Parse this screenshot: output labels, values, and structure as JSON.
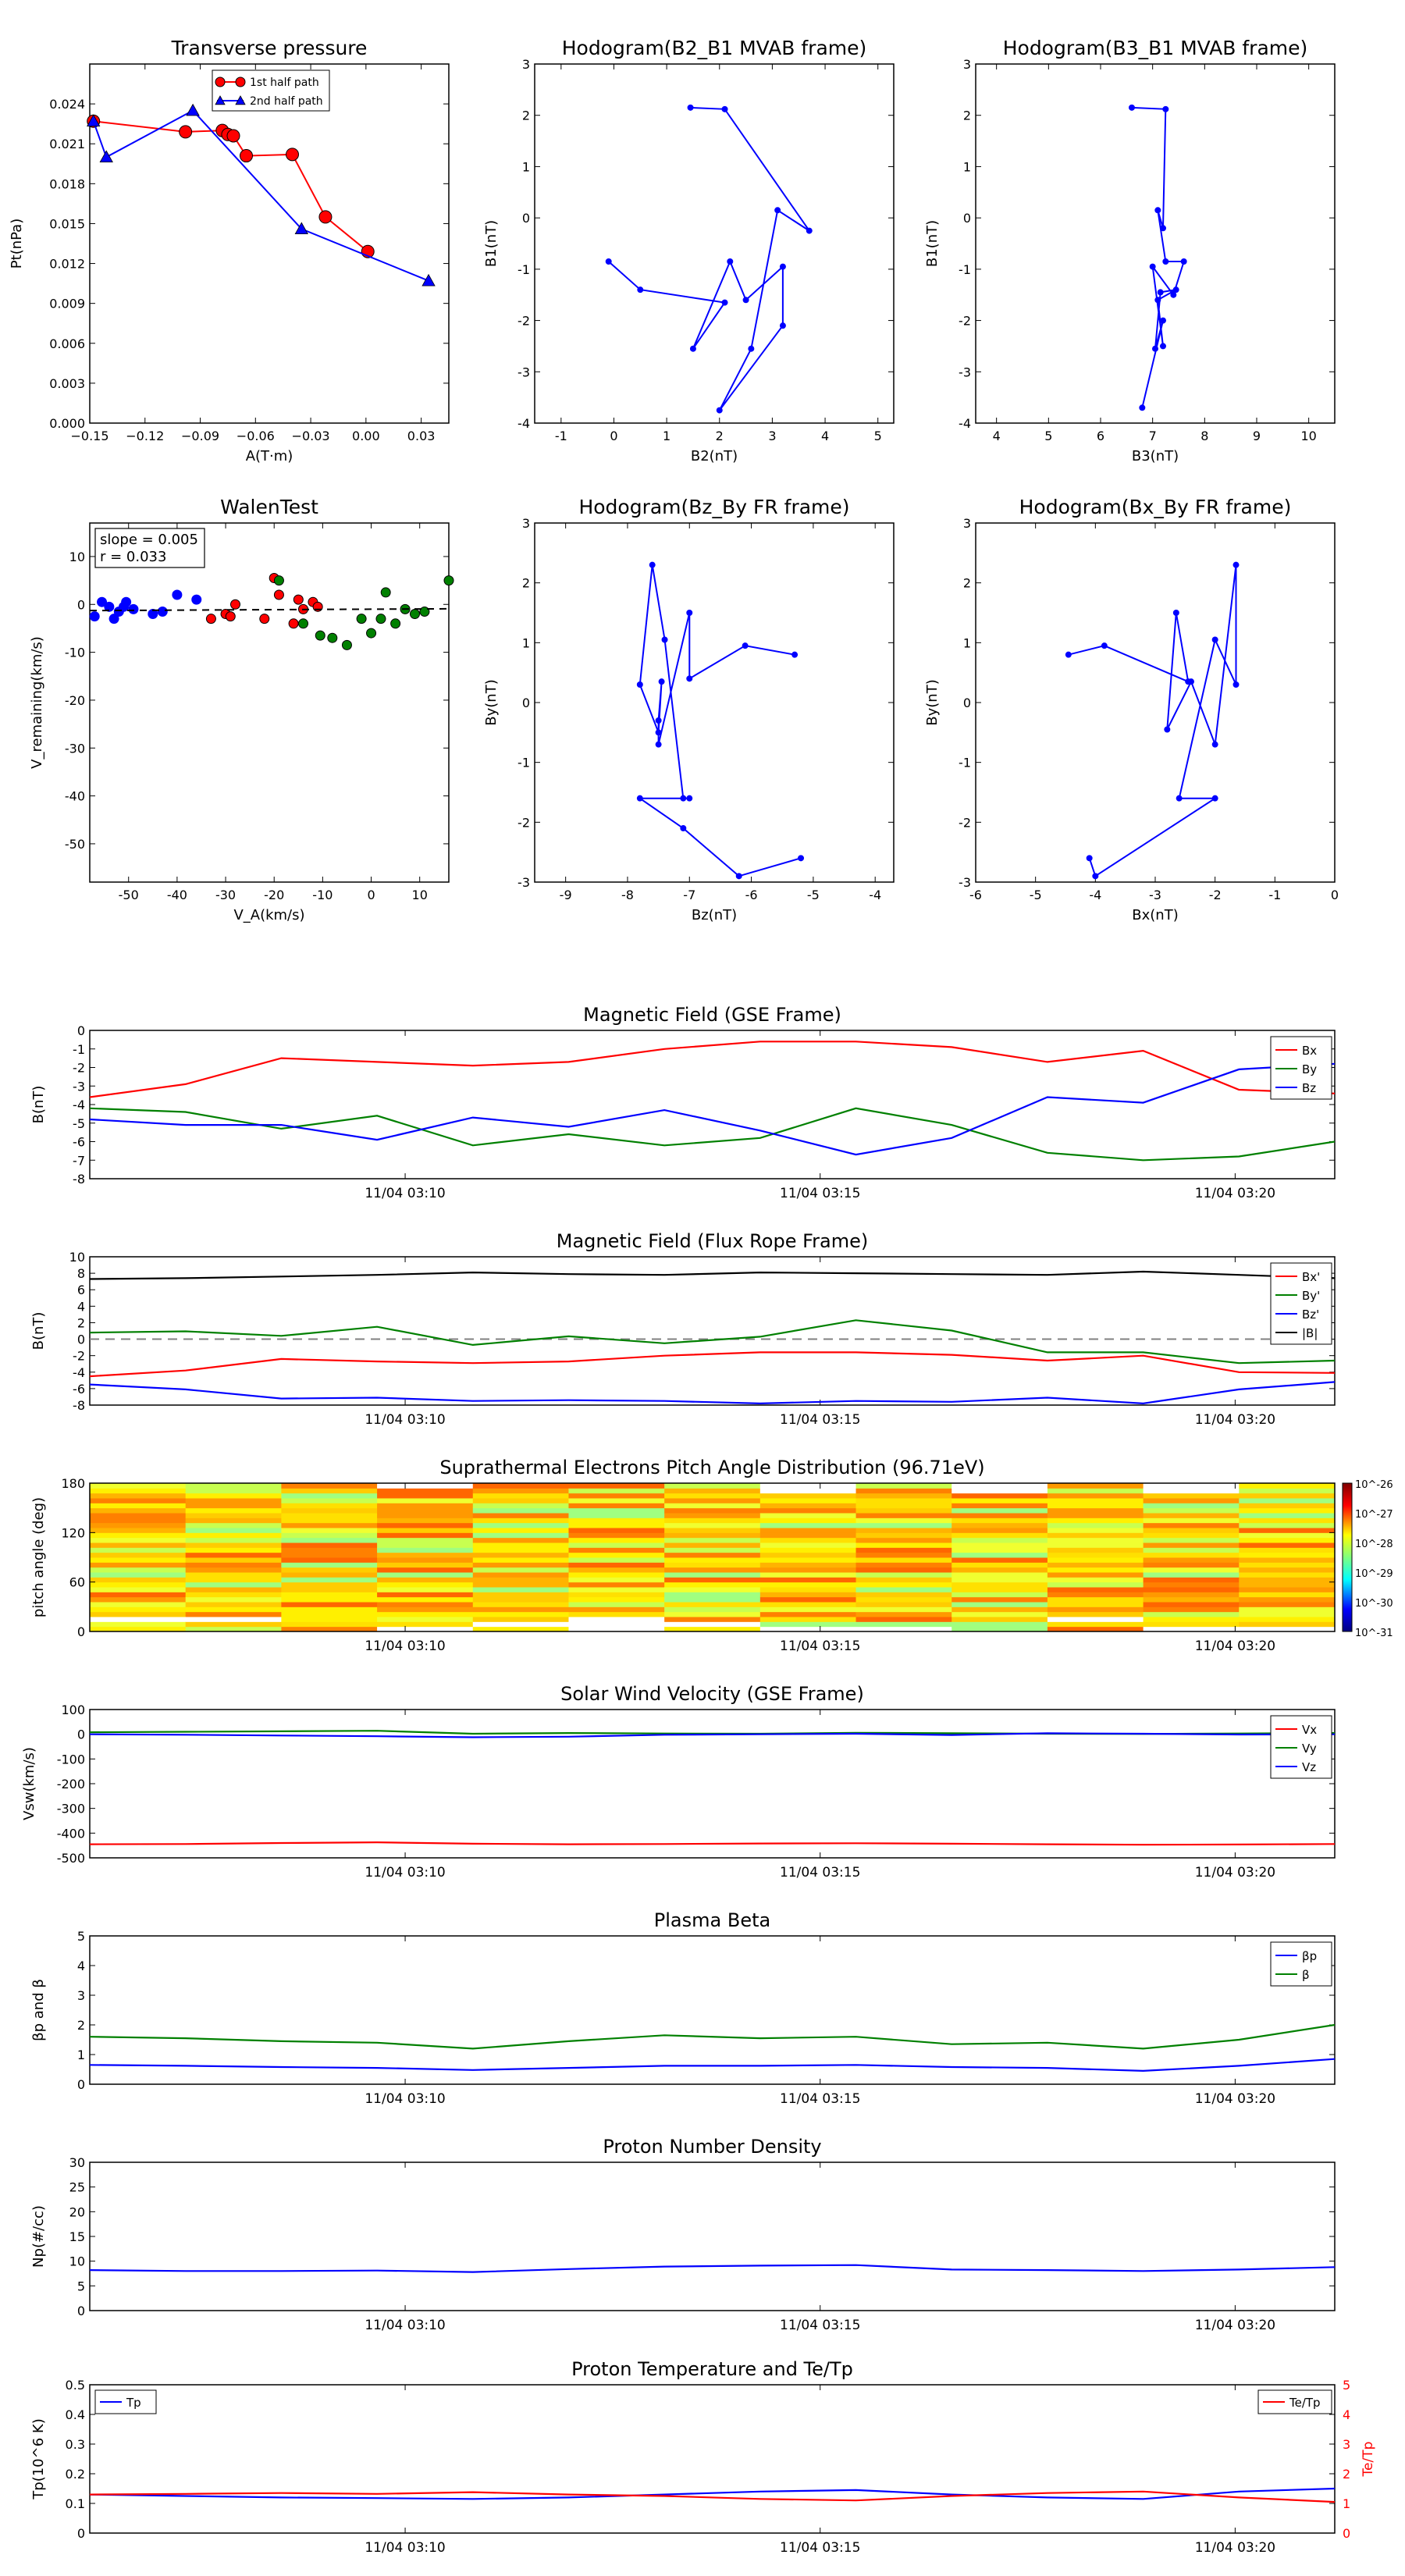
{
  "colors": {
    "red": "#ff0000",
    "green": "#008000",
    "blue": "#0000ff",
    "black": "#000000",
    "gray": "#808080"
  },
  "time_ticks": [
    "11/04 03:10",
    "11/04 03:15",
    "11/04 03:20"
  ],
  "chart_data": [
    {
      "id": "transverse",
      "type": "scatter",
      "title": "Transverse pressure",
      "xlabel": "A(T·m)",
      "ylabel": "Pt(nPa)",
      "xlim": [
        -0.15,
        0.045
      ],
      "ylim": [
        0,
        0.027
      ],
      "xticks": [
        -0.15,
        -0.12,
        -0.09,
        -0.06,
        -0.03,
        0.0,
        0.03
      ],
      "xtick_labels": [
        "−0.15",
        "−0.12",
        "−0.09",
        "−0.06",
        "−0.03",
        "0.00",
        "0.03"
      ],
      "yticks": [
        0,
        0.003,
        0.006,
        0.009,
        0.012,
        0.015,
        0.018,
        0.021,
        0.024
      ],
      "ytick_labels": [
        "0.000",
        "0.003",
        "0.006",
        "0.009",
        "0.012",
        "0.015",
        "0.018",
        "0.021",
        "0.024"
      ],
      "legend": "top-center",
      "series": [
        {
          "name": "1st half path",
          "color": "#ff0000",
          "marker": "circle",
          "x": [
            -0.148,
            -0.098,
            -0.078,
            -0.075,
            -0.072,
            -0.065,
            -0.04,
            -0.022,
            0.001
          ],
          "y": [
            0.0227,
            0.0219,
            0.022,
            0.0217,
            0.0216,
            0.0201,
            0.0202,
            0.0155,
            0.0129
          ]
        },
        {
          "name": "2nd half path",
          "color": "#0000ff",
          "marker": "triangle",
          "x": [
            -0.148,
            -0.141,
            -0.094,
            -0.035,
            0.034
          ],
          "y": [
            0.0227,
            0.02,
            0.0235,
            0.0146,
            0.0107
          ]
        }
      ]
    },
    {
      "id": "hodo1",
      "type": "line",
      "title": "Hodogram(B2_B1 MVAB frame)",
      "xlabel": "B2(nT)",
      "ylabel": "B1(nT)",
      "xlim": [
        -1.5,
        5.3
      ],
      "ylim": [
        -4,
        3
      ],
      "xticks": [
        -1,
        0,
        1,
        2,
        3,
        4,
        5
      ],
      "yticks": [
        -4,
        -3,
        -2,
        -1,
        0,
        1,
        2,
        3
      ],
      "series": [
        {
          "color": "#0000ff",
          "x": [
            1.45,
            2.1,
            3.7,
            3.1,
            2.6,
            2.0,
            3.2,
            3.2,
            2.5,
            2.2,
            1.5,
            2.1,
            0.5,
            -0.1
          ],
          "y": [
            2.15,
            2.12,
            -0.25,
            0.15,
            -2.55,
            -3.75,
            -2.1,
            -0.95,
            -1.6,
            -0.85,
            -2.55,
            -1.65,
            -1.4,
            -0.85
          ]
        }
      ]
    },
    {
      "id": "hodo2",
      "type": "line",
      "title": "Hodogram(B3_B1 MVAB frame)",
      "xlabel": "B3(nT)",
      "ylabel": "B1(nT)",
      "xlim": [
        3.6,
        10.5
      ],
      "ylim": [
        -4,
        3
      ],
      "xticks": [
        4,
        5,
        6,
        7,
        8,
        9,
        10
      ],
      "yticks": [
        -4,
        -3,
        -2,
        -1,
        0,
        1,
        2,
        3
      ],
      "series": [
        {
          "color": "#0000ff",
          "x": [
            6.6,
            7.25,
            7.2,
            7.1,
            7.25,
            7.6,
            7.4,
            7.0,
            7.2,
            7.1,
            7.45,
            7.15,
            7.05,
            7.2,
            6.8
          ],
          "y": [
            2.15,
            2.12,
            -0.2,
            0.15,
            -0.85,
            -0.85,
            -1.5,
            -0.95,
            -2.5,
            -1.6,
            -1.4,
            -1.45,
            -2.55,
            -2.0,
            -3.7
          ]
        }
      ]
    },
    {
      "id": "walen",
      "type": "scatter",
      "title": "WalenTest",
      "xlabel": "V_A(km/s)",
      "ylabel": "V_remaining(km/s)",
      "xlim": [
        -58,
        16
      ],
      "ylim": [
        -58,
        17
      ],
      "xticks": [
        -50,
        -40,
        -30,
        -20,
        -10,
        0,
        10
      ],
      "yticks": [
        -50,
        -40,
        -30,
        -20,
        -10,
        0,
        10
      ],
      "annotation": [
        "slope = 0.005",
        "r = 0.033"
      ],
      "fit_line": {
        "slope": 0.005,
        "intercept": -1.0,
        "style": "dashed"
      },
      "series": [
        {
          "color": "#0000ff",
          "x": [
            -57,
            -55.5,
            -54,
            -53,
            -52,
            -51,
            -50.5,
            -49,
            -45,
            -43,
            -40,
            -36
          ],
          "y": [
            -2.5,
            0.5,
            -0.5,
            -3,
            -1.5,
            -0.5,
            0.5,
            -1,
            -2,
            -1.5,
            2,
            1
          ]
        },
        {
          "color": "#ff0000",
          "x": [
            -33,
            -30,
            -29,
            -28,
            -22,
            -20,
            -19,
            -16,
            -15,
            -14,
            -12,
            -11
          ],
          "y": [
            -3,
            -2,
            -2.5,
            0,
            -3,
            5.5,
            2,
            -4,
            1,
            -1,
            0.5,
            -0.5
          ]
        },
        {
          "color": "#008000",
          "x": [
            -19,
            -14,
            -10.5,
            -8,
            -5,
            -2,
            0,
            2,
            3,
            5,
            7,
            9,
            11,
            16
          ],
          "y": [
            5,
            -4,
            -6.5,
            -7,
            -8.5,
            -3,
            -6,
            -3,
            2.5,
            -4,
            -1,
            -2,
            -1.5,
            5
          ]
        }
      ]
    },
    {
      "id": "hodo3",
      "type": "line",
      "title": "Hodogram(Bz_By FR frame)",
      "xlabel": "Bz(nT)",
      "ylabel": "By(nT)",
      "xlim": [
        -9.5,
        -3.7
      ],
      "ylim": [
        -3,
        3
      ],
      "xticks": [
        -9,
        -8,
        -7,
        -6,
        -5,
        -4
      ],
      "yticks": [
        -3,
        -2,
        -1,
        0,
        1,
        2,
        3
      ],
      "series": [
        {
          "color": "#0000ff",
          "x": [
            -5.3,
            -6.1,
            -7.0,
            -7.0,
            -7.5,
            -7.5,
            -7.45,
            -7.5,
            -7.8,
            -7.6,
            -7.4,
            -7.1,
            -7.0,
            -7.8,
            -7.1,
            -6.2,
            -5.2
          ],
          "y": [
            0.8,
            0.95,
            0.4,
            1.5,
            -0.7,
            -0.3,
            0.35,
            -0.5,
            0.3,
            2.3,
            1.05,
            -1.6,
            -1.6,
            -1.6,
            -2.1,
            -2.9,
            -2.6
          ]
        }
      ]
    },
    {
      "id": "hodo4",
      "type": "line",
      "title": "Hodogram(Bx_By FR frame)",
      "xlabel": "Bx(nT)",
      "ylabel": "By(nT)",
      "xlim": [
        -6,
        0
      ],
      "ylim": [
        -3,
        3
      ],
      "xticks": [
        -6,
        -5,
        -4,
        -3,
        -2,
        -1,
        0
      ],
      "yticks": [
        -3,
        -2,
        -1,
        0,
        1,
        2,
        3
      ],
      "series": [
        {
          "color": "#0000ff",
          "x": [
            -4.45,
            -3.85,
            -2.45,
            -2.65,
            -2.8,
            -2.4,
            -2.0,
            -1.65,
            -1.65,
            -2.0,
            -2.6,
            -2.0,
            -4.0,
            -4.1
          ],
          "y": [
            0.8,
            0.95,
            0.35,
            1.5,
            -0.45,
            0.35,
            -0.7,
            2.3,
            0.3,
            1.05,
            -1.6,
            -1.6,
            -2.9,
            -2.6
          ]
        }
      ]
    },
    {
      "id": "bgse",
      "type": "line",
      "title": "Magnetic Field (GSE Frame)",
      "ylabel": "B(nT)",
      "ylim": [
        -8,
        0
      ],
      "yticks": [
        0,
        -1,
        -2,
        -3,
        -4,
        -5,
        -6,
        -7,
        -8
      ],
      "legend": "top-right",
      "x_minutes": [
        0,
        1,
        2,
        3,
        4,
        5,
        6,
        7,
        8,
        9,
        10,
        11,
        12,
        13
      ],
      "series": [
        {
          "name": "Bx",
          "color": "#ff0000",
          "values": [
            -3.6,
            -2.9,
            -1.5,
            -1.7,
            -1.9,
            -1.7,
            -1.0,
            -0.6,
            -0.6,
            -0.9,
            -1.7,
            -1.1,
            -3.2,
            -3.4
          ]
        },
        {
          "name": "By",
          "color": "#008000",
          "values": [
            -4.2,
            -4.4,
            -5.3,
            -4.6,
            -6.2,
            -5.6,
            -6.2,
            -5.8,
            -4.2,
            -5.1,
            -6.6,
            -7.0,
            -6.8,
            -6.0
          ]
        },
        {
          "name": "Bz",
          "color": "#0000ff",
          "values": [
            -4.8,
            -5.1,
            -5.1,
            -5.9,
            -4.7,
            -5.2,
            -4.3,
            -5.4,
            -6.7,
            -5.8,
            -3.6,
            -3.9,
            -2.1,
            -1.8
          ]
        }
      ]
    },
    {
      "id": "bfr",
      "type": "line",
      "title": "Magnetic Field (Flux Rope Frame)",
      "ylabel": "B(nT)",
      "ylim": [
        -8,
        10
      ],
      "yticks": [
        10,
        8,
        6,
        4,
        2,
        0,
        -2,
        -4,
        -6,
        -8
      ],
      "zero_line": true,
      "legend": "right",
      "x_minutes": [
        0,
        1,
        2,
        3,
        4,
        5,
        6,
        7,
        8,
        9,
        10,
        11,
        12,
        13
      ],
      "series": [
        {
          "name": "Bx'",
          "color": "#ff0000",
          "values": [
            -4.5,
            -3.8,
            -2.4,
            -2.7,
            -2.9,
            -2.7,
            -2.0,
            -1.6,
            -1.6,
            -1.9,
            -2.6,
            -2.0,
            -4.0,
            -4.1
          ]
        },
        {
          "name": "By'",
          "color": "#008000",
          "values": [
            0.8,
            0.95,
            0.4,
            1.5,
            -0.7,
            0.35,
            -0.5,
            0.3,
            2.3,
            1.05,
            -1.6,
            -1.6,
            -2.9,
            -2.6
          ]
        },
        {
          "name": "Bz'",
          "color": "#0000ff",
          "values": [
            -5.5,
            -6.1,
            -7.2,
            -7.1,
            -7.5,
            -7.4,
            -7.5,
            -7.8,
            -7.5,
            -7.6,
            -7.1,
            -7.8,
            -6.1,
            -5.2
          ]
        },
        {
          "name": "|B|",
          "color": "#000000",
          "values": [
            7.3,
            7.4,
            7.6,
            7.8,
            8.1,
            7.9,
            7.8,
            8.1,
            8.0,
            7.9,
            7.8,
            8.2,
            7.8,
            7.4
          ]
        }
      ]
    },
    {
      "id": "pad",
      "type": "heatmap",
      "title": "Suprathermal Electrons Pitch Angle Distribution (96.71eV)",
      "ylabel": "pitch angle (deg)",
      "ylim": [
        0,
        180
      ],
      "yticks": [
        0,
        60,
        120,
        180
      ],
      "colorbar": {
        "labels": [
          "10^-26",
          "10^-27",
          "10^-28",
          "10^-29",
          "10^-30",
          "10^-31"
        ],
        "range_log": [
          -31,
          -26
        ]
      },
      "columns": 13,
      "rows": 30,
      "seed": 7
    },
    {
      "id": "vsw",
      "type": "line",
      "title": "Solar Wind Velocity (GSE Frame)",
      "ylabel": "Vsw(km/s)",
      "ylim": [
        -500,
        100
      ],
      "yticks": [
        100,
        0,
        -100,
        -200,
        -300,
        -400,
        -500
      ],
      "legend": "top-right",
      "x_minutes": [
        0,
        1,
        2,
        3,
        4,
        5,
        6,
        7,
        8,
        9,
        10,
        11,
        12,
        13
      ],
      "series": [
        {
          "name": "Vx",
          "color": "#ff0000",
          "values": [
            -445,
            -444,
            -440,
            -437,
            -443,
            -445,
            -444,
            -442,
            -441,
            -443,
            -445,
            -447,
            -446,
            -444
          ]
        },
        {
          "name": "Vy",
          "color": "#008000",
          "values": [
            8,
            10,
            12,
            14,
            2,
            5,
            3,
            2,
            6,
            4,
            2,
            1,
            3,
            5
          ]
        },
        {
          "name": "Vz",
          "color": "#0000ff",
          "values": [
            0,
            -2,
            -5,
            -8,
            -12,
            -10,
            -2,
            0,
            2,
            -3,
            4,
            2,
            -1,
            0
          ]
        }
      ]
    },
    {
      "id": "beta",
      "type": "line",
      "title": "Plasma Beta",
      "ylabel": "βp and β",
      "ylim": [
        0,
        5
      ],
      "yticks": [
        0,
        1,
        2,
        3,
        4,
        5
      ],
      "legend": "top-right",
      "x_minutes": [
        0,
        1,
        2,
        3,
        4,
        5,
        6,
        7,
        8,
        9,
        10,
        11,
        12,
        13
      ],
      "series": [
        {
          "name": "βp",
          "color": "#0000ff",
          "values": [
            0.65,
            0.62,
            0.58,
            0.55,
            0.48,
            0.55,
            0.62,
            0.62,
            0.65,
            0.58,
            0.55,
            0.45,
            0.62,
            0.85
          ]
        },
        {
          "name": "β",
          "color": "#008000",
          "values": [
            1.6,
            1.55,
            1.45,
            1.4,
            1.2,
            1.45,
            1.65,
            1.55,
            1.6,
            1.35,
            1.4,
            1.2,
            1.5,
            2.0
          ]
        }
      ]
    },
    {
      "id": "np",
      "type": "line",
      "title": "Proton Number Density",
      "ylabel": "Np(#/cc)",
      "ylim": [
        0,
        30
      ],
      "yticks": [
        0,
        5,
        10,
        15,
        20,
        25,
        30
      ],
      "x_minutes": [
        0,
        1,
        2,
        3,
        4,
        5,
        6,
        7,
        8,
        9,
        10,
        11,
        12,
        13
      ],
      "series": [
        {
          "name": "Np",
          "color": "#0000ff",
          "values": [
            8.2,
            8.0,
            8.0,
            8.1,
            7.8,
            8.4,
            8.9,
            9.1,
            9.2,
            8.3,
            8.2,
            8.0,
            8.3,
            8.8
          ]
        }
      ]
    },
    {
      "id": "tp",
      "type": "line",
      "title": "Proton Temperature and Te/Tp",
      "ylabel": "Tp(10^6 K)",
      "ylabel_right": "Te/Tp",
      "ylim": [
        0,
        0.5
      ],
      "yticks": [
        0,
        0.1,
        0.2,
        0.3,
        0.4,
        0.5
      ],
      "ylim_right": [
        0,
        5
      ],
      "yticks_right": [
        0,
        1,
        2,
        3,
        4,
        5
      ],
      "x_minutes": [
        0,
        1,
        2,
        3,
        4,
        5,
        6,
        7,
        8,
        9,
        10,
        11,
        12,
        13
      ],
      "series": [
        {
          "name": "Tp",
          "color": "#0000ff",
          "axis": "left",
          "values": [
            0.13,
            0.125,
            0.12,
            0.118,
            0.115,
            0.12,
            0.13,
            0.14,
            0.145,
            0.13,
            0.12,
            0.115,
            0.14,
            0.15
          ]
        },
        {
          "name": "Te/Tp",
          "color": "#ff0000",
          "axis": "right",
          "values": [
            1.3,
            1.32,
            1.35,
            1.32,
            1.38,
            1.3,
            1.25,
            1.15,
            1.1,
            1.25,
            1.35,
            1.4,
            1.2,
            1.05
          ]
        }
      ]
    }
  ]
}
